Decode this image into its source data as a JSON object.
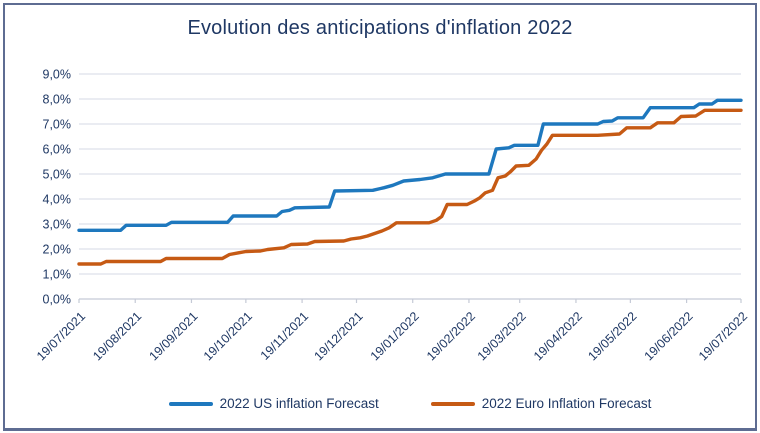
{
  "chart": {
    "frame_border_color": "#5E6C92",
    "background": "#ffffff",
    "title_color": "#1F3864",
    "axis_label_color": "#1F3864",
    "gridline_color": "#DEE0EB",
    "axis_line_color": "#C5CAD6"
  },
  "chart_data": {
    "type": "line",
    "title": "Evolution des anticipations d'inflation 2022",
    "xlabel": "",
    "ylabel": "",
    "ylim": [
      0,
      9
    ],
    "y_tick_labels": [
      "0,0%",
      "1,0%",
      "2,0%",
      "3,0%",
      "4,0%",
      "5,0%",
      "6,0%",
      "7,0%",
      "8,0%",
      "9,0%"
    ],
    "x_tick_labels": [
      "19/07/2021",
      "19/08/2021",
      "19/09/2021",
      "19/10/2021",
      "19/11/2021",
      "19/12/2021",
      "19/01/2022",
      "19/02/2022",
      "19/03/2022",
      "19/04/2022",
      "19/05/2022",
      "19/06/2022",
      "19/07/2022"
    ],
    "x_tick_days": [
      0,
      31,
      62,
      92,
      123,
      153,
      184,
      215,
      243,
      274,
      304,
      335,
      365
    ],
    "x_range_days": 365,
    "grid": "horizontal",
    "legend_position": "bottom",
    "series": [
      {
        "name": "2022 US inflation Forecast",
        "color": "#1E78BE",
        "points": [
          [
            0,
            2.75
          ],
          [
            23,
            2.75
          ],
          [
            26,
            2.95
          ],
          [
            48,
            2.95
          ],
          [
            51,
            3.07
          ],
          [
            82,
            3.07
          ],
          [
            85,
            3.32
          ],
          [
            109,
            3.32
          ],
          [
            112,
            3.5
          ],
          [
            116,
            3.55
          ],
          [
            119,
            3.65
          ],
          [
            138,
            3.68
          ],
          [
            141,
            4.32
          ],
          [
            162,
            4.35
          ],
          [
            168,
            4.45
          ],
          [
            173,
            4.55
          ],
          [
            179,
            4.72
          ],
          [
            188,
            4.78
          ],
          [
            195,
            4.85
          ],
          [
            202,
            5.0
          ],
          [
            226,
            5.0
          ],
          [
            230,
            6.0
          ],
          [
            237,
            6.05
          ],
          [
            240,
            6.15
          ],
          [
            253,
            6.15
          ],
          [
            256,
            7.0
          ],
          [
            286,
            7.0
          ],
          [
            289,
            7.1
          ],
          [
            294,
            7.12
          ],
          [
            297,
            7.25
          ],
          [
            311,
            7.25
          ],
          [
            315,
            7.65
          ],
          [
            339,
            7.65
          ],
          [
            342,
            7.8
          ],
          [
            349,
            7.8
          ],
          [
            352,
            7.95
          ],
          [
            365,
            7.95
          ]
        ]
      },
      {
        "name": "2022 Euro Inflation Forecast",
        "color": "#C65A14",
        "points": [
          [
            0,
            1.4
          ],
          [
            12,
            1.4
          ],
          [
            15,
            1.5
          ],
          [
            45,
            1.5
          ],
          [
            48,
            1.62
          ],
          [
            79,
            1.62
          ],
          [
            83,
            1.78
          ],
          [
            88,
            1.85
          ],
          [
            92,
            1.9
          ],
          [
            100,
            1.92
          ],
          [
            104,
            1.98
          ],
          [
            113,
            2.05
          ],
          [
            117,
            2.18
          ],
          [
            126,
            2.2
          ],
          [
            130,
            2.3
          ],
          [
            146,
            2.32
          ],
          [
            150,
            2.4
          ],
          [
            155,
            2.45
          ],
          [
            159,
            2.52
          ],
          [
            163,
            2.62
          ],
          [
            167,
            2.72
          ],
          [
            171,
            2.85
          ],
          [
            175,
            3.05
          ],
          [
            193,
            3.05
          ],
          [
            197,
            3.15
          ],
          [
            200,
            3.3
          ],
          [
            203,
            3.78
          ],
          [
            214,
            3.78
          ],
          [
            218,
            3.92
          ],
          [
            221,
            4.05
          ],
          [
            224,
            4.25
          ],
          [
            228,
            4.35
          ],
          [
            231,
            4.85
          ],
          [
            235,
            4.92
          ],
          [
            238,
            5.1
          ],
          [
            241,
            5.32
          ],
          [
            248,
            5.35
          ],
          [
            252,
            5.6
          ],
          [
            255,
            5.95
          ],
          [
            258,
            6.2
          ],
          [
            261,
            6.55
          ],
          [
            286,
            6.55
          ],
          [
            298,
            6.6
          ],
          [
            302,
            6.85
          ],
          [
            315,
            6.85
          ],
          [
            319,
            7.05
          ],
          [
            328,
            7.05
          ],
          [
            332,
            7.3
          ],
          [
            340,
            7.32
          ],
          [
            345,
            7.55
          ],
          [
            365,
            7.55
          ]
        ]
      }
    ]
  }
}
